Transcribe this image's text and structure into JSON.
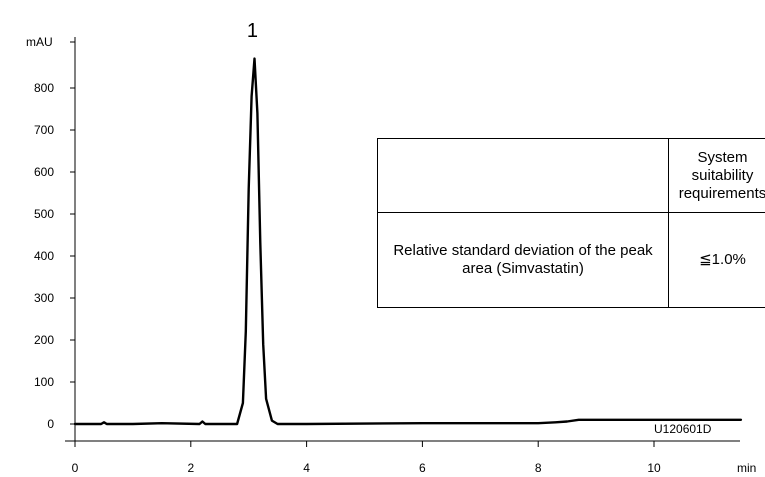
{
  "chart_data": {
    "type": "line",
    "y_unit": "mAU",
    "x_unit": "min",
    "xlim": [
      -0.1,
      11.5
    ],
    "ylim": [
      -30,
      900
    ],
    "x_ticks": [
      0,
      2,
      4,
      6,
      8,
      10
    ],
    "y_ticks": [
      0,
      100,
      200,
      300,
      400,
      500,
      600,
      700,
      800
    ],
    "series": [
      {
        "x": [
          0,
          0.45,
          0.5,
          0.55,
          1.0,
          1.5,
          2.15,
          2.2,
          2.25,
          2.8,
          2.9,
          2.95,
          3.0,
          3.05,
          3.1,
          3.15,
          3.2,
          3.25,
          3.3,
          3.4,
          3.5,
          4.0,
          6.0,
          8.0,
          8.3,
          8.5,
          8.7,
          9.0,
          10.0,
          11.5
        ],
        "y": [
          0,
          0,
          4,
          0,
          0,
          2,
          0,
          6,
          0,
          0,
          50,
          220,
          560,
          780,
          870,
          740,
          430,
          190,
          60,
          8,
          0,
          0,
          2,
          2,
          4,
          6,
          10,
          10,
          10,
          10
        ]
      }
    ],
    "peaks": [
      {
        "label": "1",
        "x": 3.1,
        "y": 870
      }
    ],
    "annotation": "U120601D"
  },
  "table": {
    "header": [
      "",
      "System suitability requirements"
    ],
    "rows": [
      [
        "Relative standard deviation of the peak area (Simvastatin)",
        "≦1.0%"
      ]
    ]
  }
}
